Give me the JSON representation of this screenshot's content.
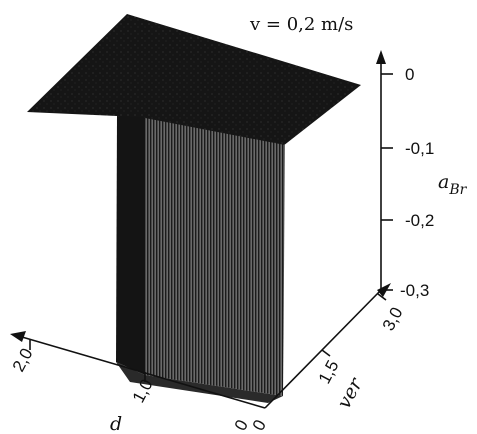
{
  "chart_data": {
    "type": "3d-surface",
    "title": "v = 0,2 m/s",
    "axes": {
      "x": {
        "label": "d",
        "ticks": [
          "0",
          "1,0",
          "2,0"
        ],
        "range": [
          0,
          2.0
        ]
      },
      "y": {
        "label": "ver",
        "ticks": [
          "0",
          "1,5",
          "3,0"
        ],
        "range": [
          0,
          3.0
        ]
      },
      "z": {
        "label": "a",
        "label_sub": "Br",
        "ticks": [
          "0",
          "-0,1",
          "-0,2",
          "-0,3"
        ],
        "range": [
          -0.3,
          0
        ]
      }
    },
    "surface": {
      "description_values": {
        "top_plateau_a": 0,
        "well_bottom_a": -0.3
      }
    },
    "colors": {
      "ink": "#111111",
      "surface_dark": "#1a1a1a",
      "paper": "#ffffff"
    }
  }
}
